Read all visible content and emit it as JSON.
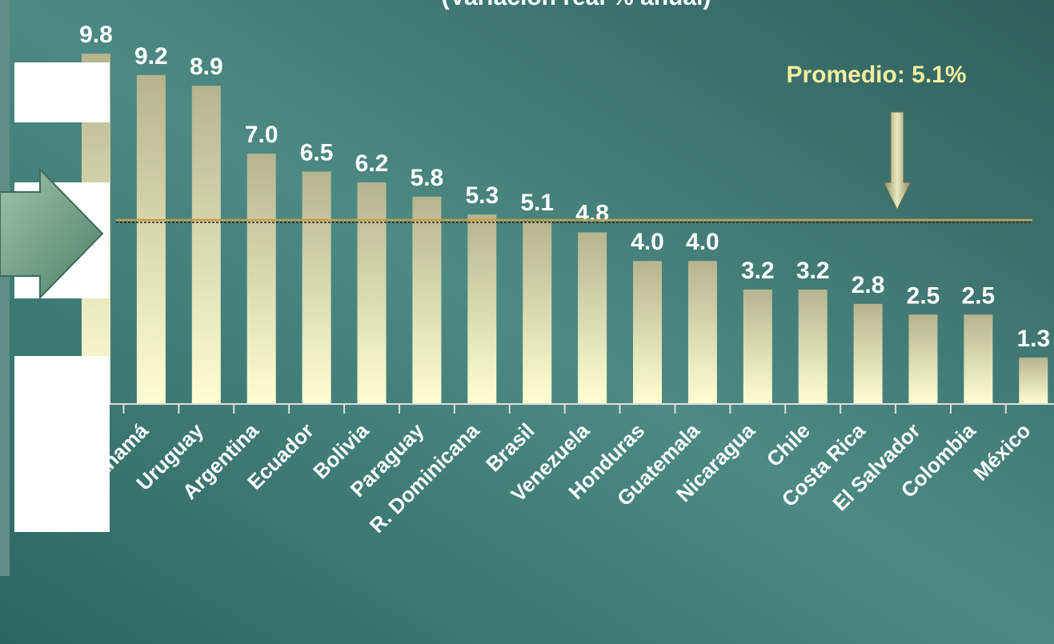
{
  "chart_data": {
    "type": "bar",
    "subtitle": "(Variación real % anual)",
    "categories": [
      null,
      "Panamá",
      "Uruguay",
      "Argentina",
      "Ecuador",
      "Bolivia",
      "Paraguay",
      "R. Dominicana",
      "Brasil",
      "Venezuela",
      "Honduras",
      "Guatemala",
      "Nicaragua",
      "Chile",
      "Costa Rica",
      "El Salvador",
      "Colombia",
      "México"
    ],
    "values": [
      9.8,
      9.2,
      8.9,
      7,
      6.5,
      6.2,
      5.8,
      5.3,
      5.1,
      4.8,
      4,
      4,
      3.2,
      3.2,
      2.8,
      2.5,
      2.5,
      1.3
    ],
    "value_labels": [
      "9.8",
      "9.2",
      "8.9",
      "7.0",
      "6.5",
      "6.2",
      "5.8",
      "5.3",
      "5.1",
      "4.8",
      "4.0",
      "4.0",
      "3.2",
      "3.2",
      "2.8",
      "2.5",
      "2.5",
      "1.3"
    ],
    "average": {
      "value": 5.1,
      "label": "Promedio: 5.1%"
    }
  }
}
